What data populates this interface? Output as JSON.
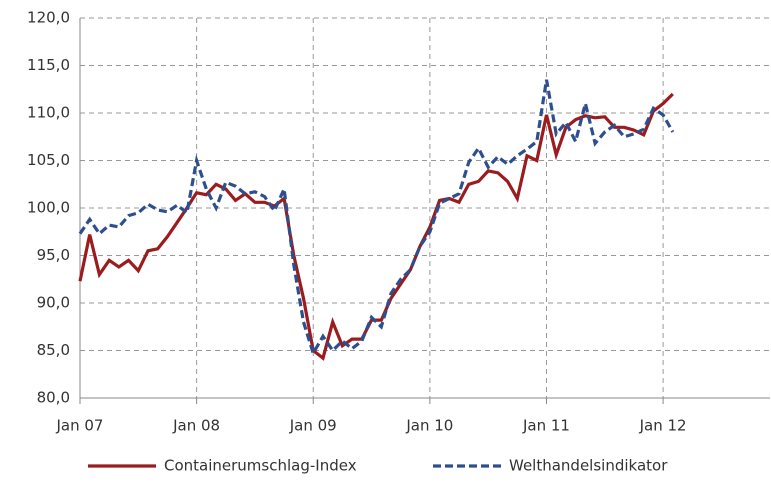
{
  "chart_data": {
    "type": "line",
    "categories": [
      "Jan 07",
      null,
      null,
      null,
      null,
      null,
      null,
      null,
      null,
      null,
      null,
      null,
      "Jan 08",
      null,
      null,
      null,
      null,
      null,
      null,
      null,
      null,
      null,
      null,
      null,
      "Jan 09",
      null,
      null,
      null,
      null,
      null,
      null,
      null,
      null,
      null,
      null,
      null,
      "Jan 10",
      null,
      null,
      null,
      null,
      null,
      null,
      null,
      null,
      null,
      null,
      null,
      "Jan 11",
      null,
      null,
      null,
      null,
      null,
      null,
      null,
      null,
      null,
      null,
      null,
      "Jan 12",
      null,
      null,
      null,
      null,
      null,
      null,
      null,
      null,
      null,
      null,
      null
    ],
    "series": [
      {
        "name": "Containerumschlag-Index",
        "color": "#9b1c1f",
        "dash": false,
        "values": [
          92.3,
          97.2,
          93,
          94.5,
          93.8,
          94.5,
          93.4,
          95.5,
          95.7,
          97,
          98.5,
          100,
          101.6,
          101.4,
          102.5,
          102,
          100.8,
          101.5,
          100.6,
          100.6,
          100.2,
          101,
          95,
          90.5,
          85,
          84.2,
          88,
          85.5,
          86.2,
          86.2,
          88.2,
          88.2,
          90.5,
          92,
          93.5,
          96,
          98,
          100.8,
          101,
          100.6,
          102.5,
          102.8,
          103.9,
          103.7,
          102.8,
          101,
          105.5,
          105,
          109.8,
          105.6,
          108.5,
          109.3,
          109.7,
          109.5,
          109.6,
          108.5,
          108.5,
          108.2,
          107.7,
          110.2,
          111,
          112,
          null,
          null,
          null,
          null,
          null,
          null,
          null,
          null,
          null,
          null
        ]
      },
      {
        "name": "Welthandelsindikator",
        "color": "#2e4f8f",
        "dash": true,
        "values": [
          97.3,
          98.8,
          97.3,
          98.2,
          98,
          99.2,
          99.5,
          100.4,
          99.8,
          99.6,
          100.3,
          99.5,
          105,
          102,
          100,
          102.7,
          102.3,
          101.5,
          101.7,
          101.2,
          99.7,
          102,
          94,
          88,
          84.7,
          86.5,
          85,
          86,
          85.2,
          86,
          88.5,
          87.5,
          91,
          92.5,
          93.5,
          96,
          97.5,
          100.5,
          101,
          101.5,
          104.8,
          106.3,
          104.3,
          105.4,
          104.6,
          105.5,
          106.2,
          107,
          113.5,
          107.8,
          109,
          107,
          111,
          106.8,
          108,
          108.7,
          107.5,
          107.8,
          108.3,
          110.5,
          109.8,
          108,
          null,
          null,
          null,
          null,
          null,
          null,
          null,
          null,
          null,
          null
        ]
      }
    ],
    "ylim": [
      80,
      120
    ],
    "yticks": [
      {
        "value": 80,
        "label": "80,0"
      },
      {
        "value": 85,
        "label": "85,0"
      },
      {
        "value": 90,
        "label": "90,0"
      },
      {
        "value": 95,
        "label": "95,0"
      },
      {
        "value": 100,
        "label": "100,0"
      },
      {
        "value": 105,
        "label": "105,0"
      },
      {
        "value": 110,
        "label": "110,0"
      },
      {
        "value": 115,
        "label": "115,0"
      },
      {
        "value": 120,
        "label": "120,0"
      }
    ],
    "grid": true,
    "legend": "bottom"
  }
}
